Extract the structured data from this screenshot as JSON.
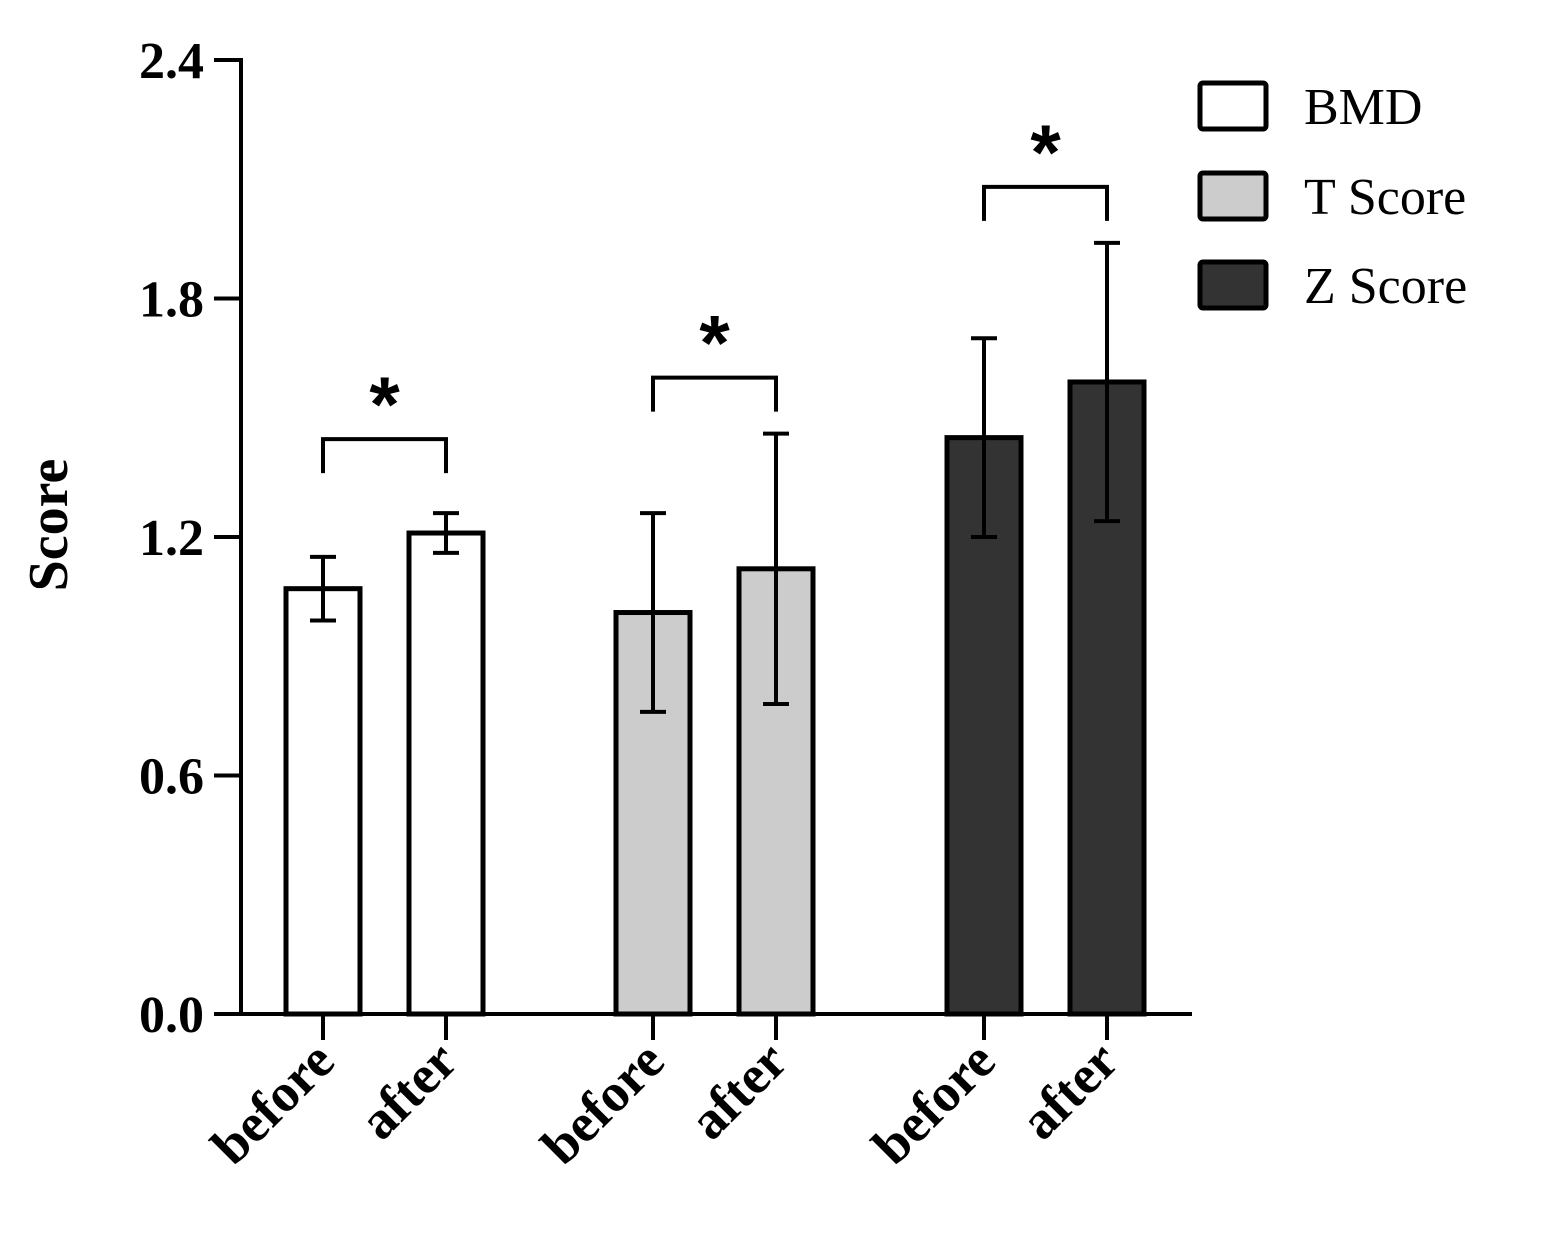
{
  "chart_data": {
    "type": "bar",
    "title": "",
    "xlabel": "",
    "ylabel": "Score",
    "ylim": [
      0,
      2.4
    ],
    "yticks": [
      "0.0",
      "0.6",
      "1.2",
      "1.8",
      "2.4"
    ],
    "grid": false,
    "legend_position": "top-right",
    "categories": [
      "before",
      "after"
    ],
    "series": [
      {
        "name": "BMD",
        "color": "#ffffff",
        "values": [
          1.07,
          1.21
        ],
        "errors": [
          0.08,
          0.05
        ]
      },
      {
        "name": "T Score",
        "color": "#cccccc",
        "values": [
          1.01,
          1.12
        ],
        "errors": [
          0.25,
          0.34
        ]
      },
      {
        "name": "Z Score",
        "color": "#333333",
        "values": [
          1.45,
          1.59
        ],
        "errors": [
          0.25,
          0.35
        ]
      }
    ],
    "annotations": [
      {
        "group": "BMD",
        "text": "*"
      },
      {
        "group": "T Score",
        "text": "*"
      },
      {
        "group": "Z Score",
        "text": "*"
      }
    ]
  }
}
